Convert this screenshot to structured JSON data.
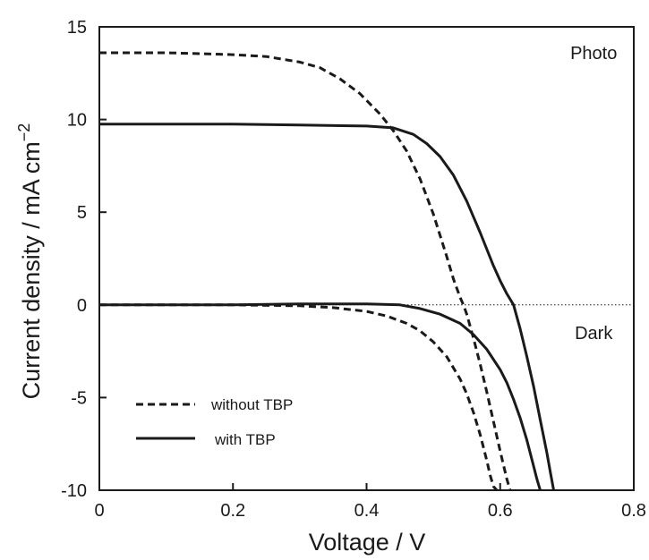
{
  "chart_data": {
    "type": "line",
    "title": "",
    "xlabel": "Voltage / V",
    "ylabel_main": "Current density / mA cm",
    "ylabel_superscript": "−2",
    "xlim": [
      0,
      0.8
    ],
    "ylim": [
      -10,
      15
    ],
    "x_ticks": [
      0,
      0.2,
      0.4,
      0.6,
      0.8
    ],
    "x_tick_labels": [
      "0",
      "0.2",
      "0.4",
      "0.6",
      "0.8"
    ],
    "y_ticks": [
      -10,
      -5,
      0,
      5,
      10,
      15
    ],
    "y_tick_labels": [
      "-10",
      "-5",
      "0",
      "5",
      "10",
      "15"
    ],
    "grid": false,
    "legend_position": "bottom-left",
    "annotations": [
      {
        "id": "photo",
        "text": "Photo",
        "x": 0.74,
        "y": 13.6
      },
      {
        "id": "dark",
        "text": "Dark",
        "x": 0.74,
        "y": -1.5
      }
    ],
    "zero_line": {
      "y": 0,
      "style": "dotted"
    },
    "legend": [
      {
        "id": "without-tbp",
        "label": "without TBP",
        "style": "dashed"
      },
      {
        "id": "with-tbp",
        "label": "with TBP",
        "style": "solid"
      }
    ],
    "series": [
      {
        "id": "without-photo",
        "group": "without-tbp",
        "condition": "Photo",
        "style": "dashed",
        "x": [
          0,
          0.05,
          0.1,
          0.15,
          0.2,
          0.25,
          0.3,
          0.33,
          0.36,
          0.39,
          0.42,
          0.44,
          0.46,
          0.48,
          0.5,
          0.52,
          0.53,
          0.54,
          0.545,
          0.55,
          0.56,
          0.57,
          0.58,
          0.59,
          0.6,
          0.61,
          0.615
        ],
        "values": [
          13.6,
          13.6,
          13.6,
          13.55,
          13.5,
          13.4,
          13.1,
          12.8,
          12.2,
          11.4,
          10.3,
          9.4,
          8.3,
          6.8,
          4.9,
          2.6,
          1.4,
          0.4,
          0,
          -0.5,
          -1.8,
          -3.2,
          -4.7,
          -6.3,
          -7.9,
          -9.4,
          -10
        ]
      },
      {
        "id": "with-photo",
        "group": "with-tbp",
        "condition": "Photo",
        "style": "solid",
        "x": [
          0,
          0.1,
          0.2,
          0.3,
          0.4,
          0.44,
          0.47,
          0.49,
          0.51,
          0.53,
          0.55,
          0.57,
          0.59,
          0.6,
          0.61,
          0.62,
          0.63,
          0.64,
          0.65,
          0.66,
          0.67,
          0.675,
          0.68
        ],
        "values": [
          9.75,
          9.75,
          9.75,
          9.7,
          9.65,
          9.55,
          9.2,
          8.7,
          8.0,
          7.0,
          5.6,
          3.9,
          2.1,
          1.3,
          0.6,
          0,
          -1.3,
          -2.8,
          -4.4,
          -6.2,
          -8.0,
          -9.0,
          -10
        ]
      },
      {
        "id": "without-dark",
        "group": "without-tbp",
        "condition": "Dark",
        "style": "dashed",
        "x": [
          0,
          0.1,
          0.2,
          0.3,
          0.35,
          0.4,
          0.43,
          0.46,
          0.48,
          0.5,
          0.52,
          0.54,
          0.55,
          0.56,
          0.57,
          0.58,
          0.585,
          0.59,
          0.595
        ],
        "values": [
          0,
          0,
          0,
          -0.05,
          -0.15,
          -0.35,
          -0.6,
          -1.0,
          -1.4,
          -2.0,
          -2.8,
          -4.0,
          -4.8,
          -5.8,
          -7.0,
          -8.4,
          -9.2,
          -9.8,
          -10
        ]
      },
      {
        "id": "with-dark",
        "group": "with-tbp",
        "condition": "Dark",
        "style": "solid",
        "x": [
          0,
          0.1,
          0.2,
          0.3,
          0.4,
          0.45,
          0.48,
          0.51,
          0.54,
          0.56,
          0.58,
          0.6,
          0.61,
          0.62,
          0.63,
          0.64,
          0.65,
          0.655,
          0.66
        ],
        "values": [
          0,
          0,
          0,
          0.05,
          0.05,
          0,
          -0.2,
          -0.5,
          -1.0,
          -1.6,
          -2.4,
          -3.5,
          -4.2,
          -5.1,
          -6.1,
          -7.3,
          -8.7,
          -9.4,
          -10
        ]
      }
    ]
  }
}
